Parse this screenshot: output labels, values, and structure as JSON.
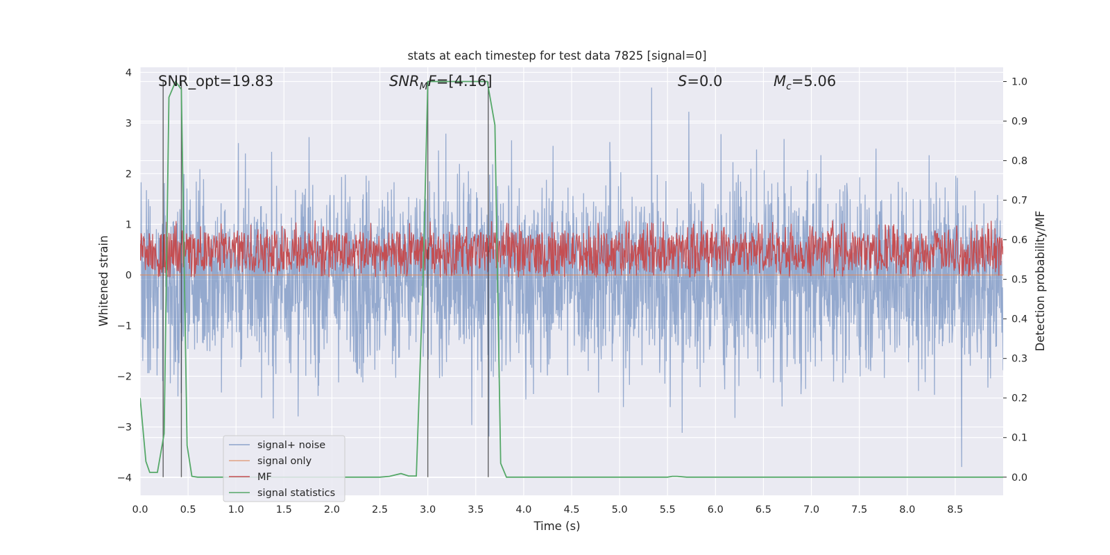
{
  "chart_data": {
    "type": "line",
    "title": "stats at each timestep for test data 7825 [signal=0]",
    "xlabel": "Time (s)",
    "ylabel": "Whitened strain",
    "ylabel_right": "Detection probability/MF",
    "xlim": [
      0,
      9.0
    ],
    "ylim_left": [
      -4.35,
      4.1
    ],
    "ylim_right": [
      -0.046,
      1.036
    ],
    "x_ticks": [
      "0.0",
      "0.5",
      "1.0",
      "1.5",
      "2.0",
      "2.5",
      "3.0",
      "3.5",
      "4.0",
      "4.5",
      "5.0",
      "5.5",
      "6.0",
      "6.5",
      "7.0",
      "7.5",
      "8.0",
      "8.5"
    ],
    "y_ticks_left": [
      "4",
      "3",
      "2",
      "1",
      "0",
      "−1",
      "−2",
      "−3",
      "−4"
    ],
    "y_ticks_right": [
      "1.0",
      "0.9",
      "0.8",
      "0.7",
      "0.6",
      "0.5",
      "0.4",
      "0.3",
      "0.2",
      "0.1",
      "0.0"
    ],
    "grid": true,
    "legend_placement": "lower-left",
    "annotations": {
      "snr_opt": "SNR_opt=19.83",
      "snr_mf": {
        "italic": "SNR",
        "sub": "M",
        "italic2": "F",
        "rest": "=[4.16]"
      },
      "s_value": {
        "italic": "S",
        "rest": "=0.0"
      },
      "mc_value": {
        "italic": "M",
        "sub": "c",
        "rest": "=5.06"
      }
    },
    "series": [
      {
        "name": "signal+ noise",
        "color": "#4c72b0",
        "axis": "left",
        "style": "noise",
        "duration_s": 9.0,
        "envelope_typical": [
          -2.0,
          2.1
        ],
        "envelope_extreme": [
          -4.0,
          3.7
        ]
      },
      {
        "name": "signal only",
        "color": "#dd8452",
        "axis": "left",
        "values_constant": 0.0
      },
      {
        "name": "MF",
        "color": "#c44e52",
        "axis": "right",
        "style": "noise",
        "band": [
          0.52,
          0.62
        ],
        "peak_max": 0.65
      },
      {
        "name": "signal statistics",
        "color": "#55a868",
        "axis": "right",
        "x": [
          0.0,
          0.06,
          0.1,
          0.18,
          0.25,
          0.3,
          0.37,
          0.43,
          0.49,
          0.54,
          0.6,
          1.0,
          1.5,
          2.0,
          2.5,
          2.6,
          2.72,
          2.8,
          2.88,
          2.95,
          3.0,
          3.06,
          3.5,
          3.62,
          3.7,
          3.76,
          3.82,
          4.0,
          4.5,
          5.0,
          5.5,
          5.55,
          5.6,
          5.7,
          6.0,
          7.0,
          8.0,
          9.0
        ],
        "values": [
          0.2,
          0.04,
          0.012,
          0.012,
          0.11,
          0.96,
          1.0,
          0.98,
          0.08,
          0.002,
          0.0,
          0.0,
          0.0,
          0.0,
          0.0,
          0.002,
          0.009,
          0.003,
          0.003,
          0.5,
          1.0,
          1.0,
          1.0,
          1.0,
          0.89,
          0.035,
          0.0,
          0.0,
          0.0,
          0.0,
          0.0,
          0.002,
          0.002,
          0.0,
          0.0,
          0.0,
          0.0,
          0.0
        ]
      }
    ],
    "vertical_markers": [
      0.24,
      0.43,
      3.0,
      3.63
    ],
    "vertical_marker_color": "#333333"
  }
}
